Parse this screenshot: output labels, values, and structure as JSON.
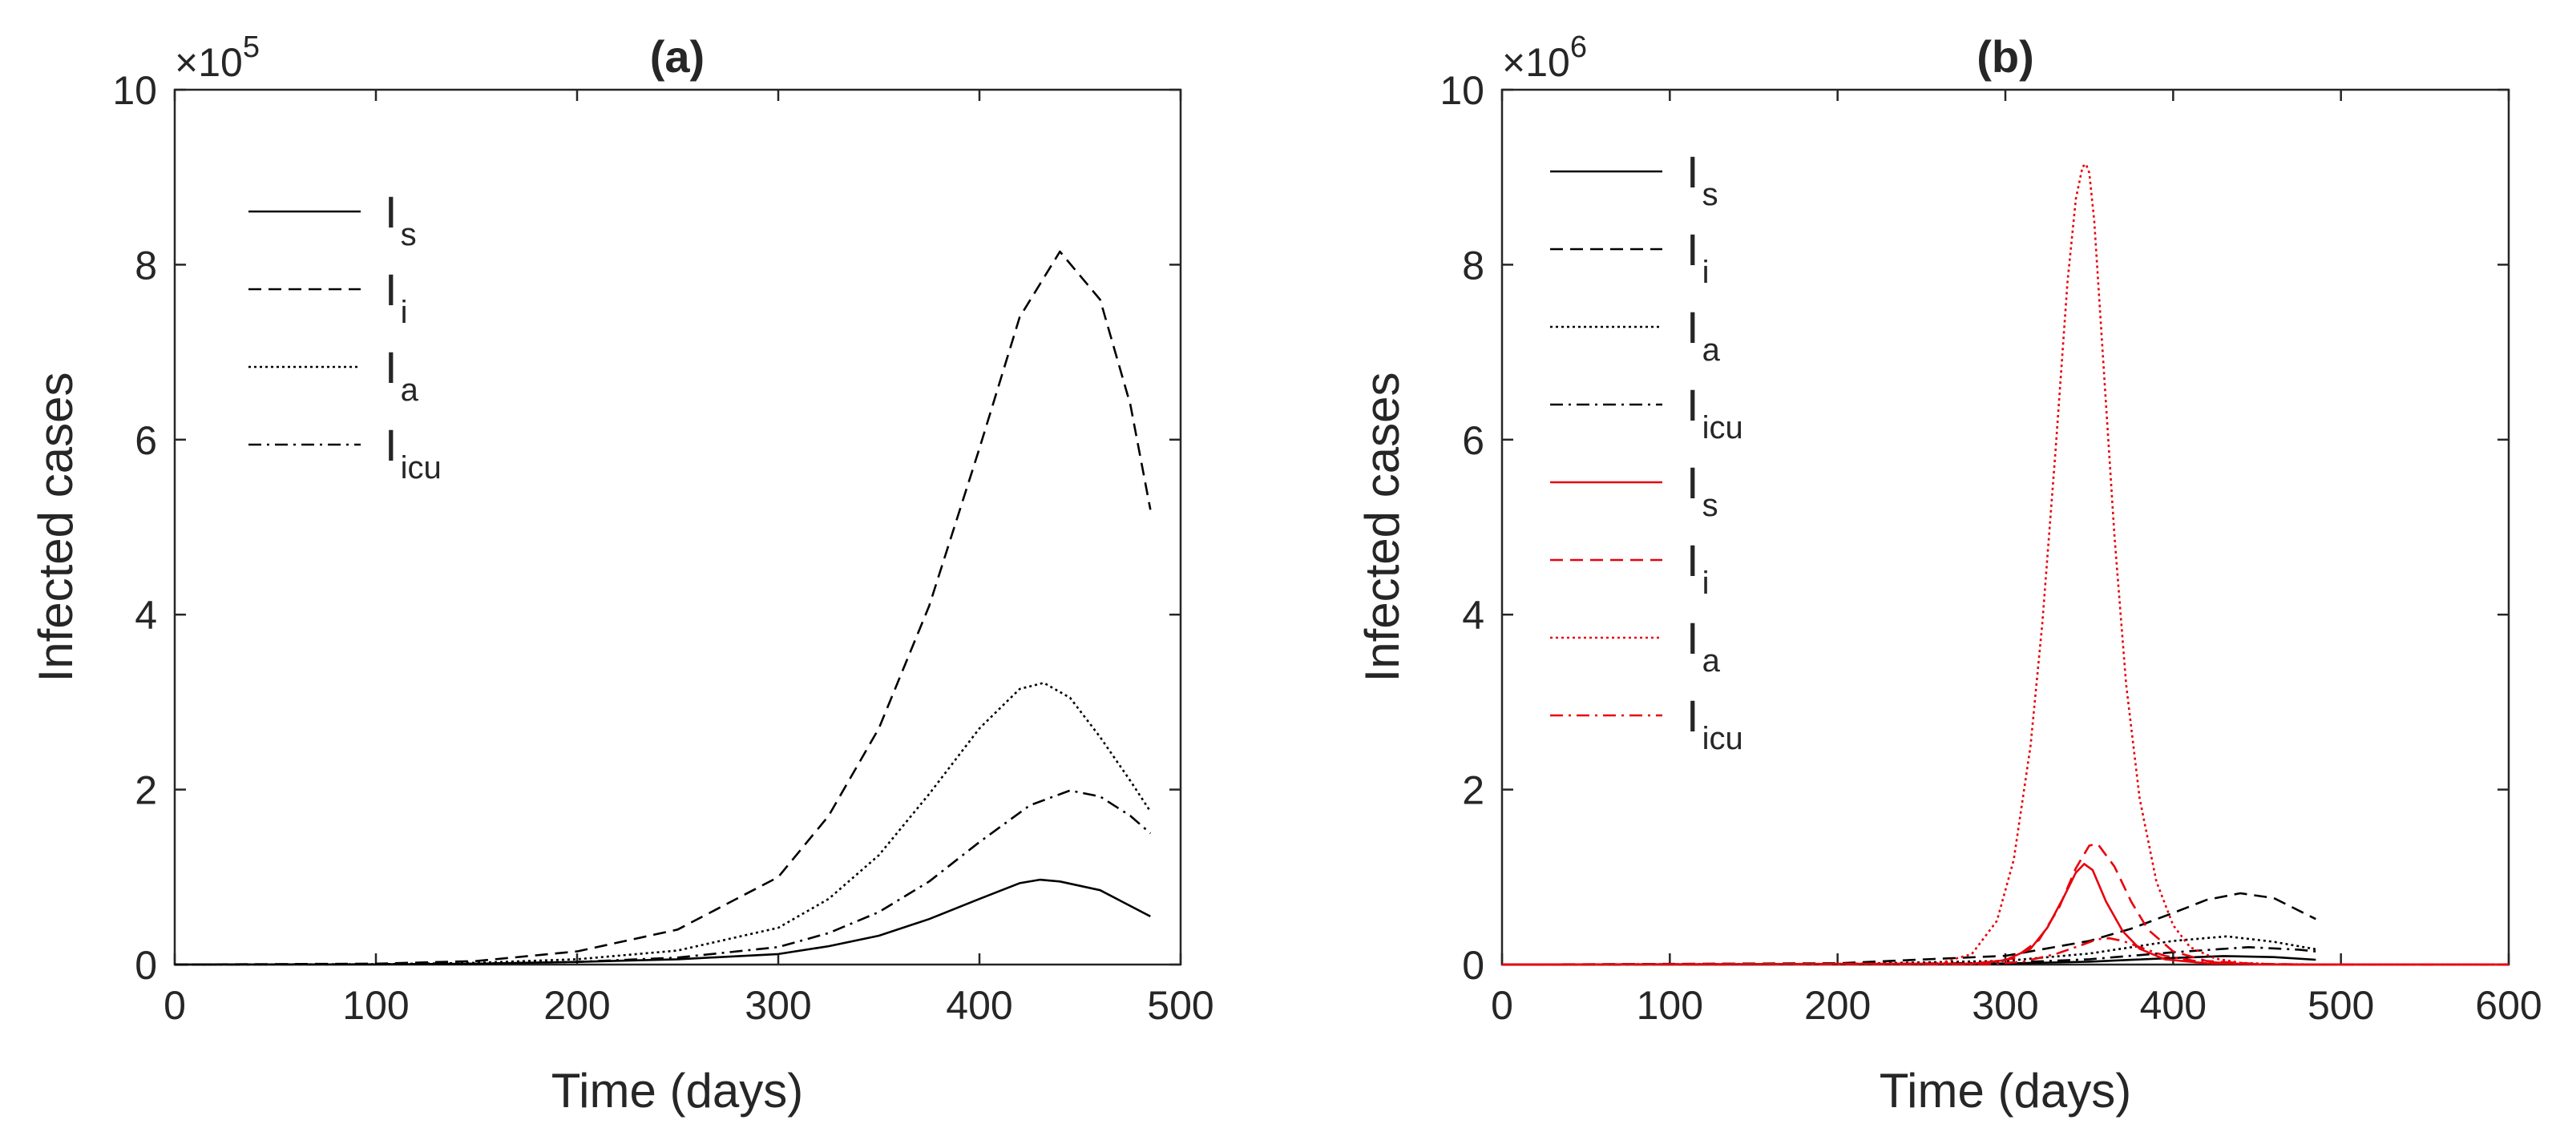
{
  "chart_data": [
    {
      "type": "line",
      "title": "(a)",
      "xlabel": "Time (days)",
      "ylabel": "Infected cases",
      "xlim": [
        0,
        500
      ],
      "ylim": [
        0,
        10
      ],
      "y_multiplier_label": "×10",
      "y_multiplier_exponent": "5",
      "xticks": [
        "0",
        "100",
        "200",
        "300",
        "400",
        "500"
      ],
      "yticks": [
        "0",
        "2",
        "4",
        "6",
        "8",
        "10"
      ],
      "legend_position": "top-left",
      "series": [
        {
          "name": "I",
          "subscript": "s",
          "color": "#000000",
          "style": "solid",
          "x": [
            0,
            100,
            150,
            200,
            250,
            300,
            325,
            350,
            375,
            400,
            420,
            430,
            440,
            460,
            485
          ],
          "y": [
            0,
            0.002,
            0.01,
            0.03,
            0.06,
            0.12,
            0.21,
            0.33,
            0.52,
            0.75,
            0.93,
            0.97,
            0.95,
            0.85,
            0.55
          ]
        },
        {
          "name": "I",
          "subscript": "i",
          "color": "#000000",
          "style": "dashed",
          "x": [
            0,
            100,
            150,
            200,
            250,
            300,
            325,
            350,
            375,
            400,
            420,
            440,
            460,
            475,
            485
          ],
          "y": [
            0,
            0.01,
            0.04,
            0.15,
            0.4,
            1.0,
            1.7,
            2.7,
            4.1,
            5.9,
            7.4,
            8.15,
            7.6,
            6.4,
            5.2
          ]
        },
        {
          "name": "I",
          "subscript": "a",
          "color": "#000000",
          "style": "dotted",
          "x": [
            0,
            100,
            150,
            200,
            250,
            300,
            325,
            350,
            375,
            400,
            420,
            432,
            445,
            460,
            475,
            485
          ],
          "y": [
            0,
            0.005,
            0.02,
            0.06,
            0.16,
            0.42,
            0.75,
            1.25,
            1.95,
            2.7,
            3.15,
            3.22,
            3.05,
            2.6,
            2.1,
            1.75
          ]
        },
        {
          "name": "I",
          "subscript": "icu",
          "color": "#000000",
          "style": "dashdot",
          "x": [
            0,
            100,
            150,
            200,
            250,
            300,
            325,
            350,
            375,
            400,
            425,
            445,
            460,
            475,
            485
          ],
          "y": [
            0,
            0.003,
            0.01,
            0.03,
            0.08,
            0.2,
            0.36,
            0.6,
            0.95,
            1.4,
            1.82,
            1.99,
            1.92,
            1.7,
            1.5
          ]
        }
      ]
    },
    {
      "type": "line",
      "title": "(b)",
      "xlabel": "Time (days)",
      "ylabel": "Infected cases",
      "xlim": [
        0,
        600
      ],
      "ylim": [
        0,
        10
      ],
      "y_multiplier_label": "×10",
      "y_multiplier_exponent": "6",
      "xticks": [
        "0",
        "100",
        "200",
        "300",
        "400",
        "500",
        "600"
      ],
      "yticks": [
        "0",
        "2",
        "4",
        "6",
        "8",
        "10"
      ],
      "legend_position": "top-left",
      "series": [
        {
          "name": "I",
          "subscript": "s",
          "color": "#000000",
          "style": "solid",
          "x": [
            0,
            200,
            300,
            350,
            400,
            430,
            460,
            485
          ],
          "y": [
            0,
            0.003,
            0.012,
            0.033,
            0.075,
            0.097,
            0.085,
            0.055
          ]
        },
        {
          "name": "I",
          "subscript": "i",
          "color": "#000000",
          "style": "dashed",
          "x": [
            0,
            200,
            300,
            350,
            375,
            400,
            420,
            440,
            460,
            485
          ],
          "y": [
            0,
            0.015,
            0.1,
            0.27,
            0.41,
            0.59,
            0.74,
            0.815,
            0.76,
            0.52
          ]
        },
        {
          "name": "I",
          "subscript": "a",
          "color": "#000000",
          "style": "dotted",
          "x": [
            0,
            200,
            300,
            350,
            400,
            432,
            460,
            485
          ],
          "y": [
            0,
            0.006,
            0.042,
            0.125,
            0.27,
            0.322,
            0.26,
            0.175
          ]
        },
        {
          "name": "I",
          "subscript": "icu",
          "color": "#000000",
          "style": "dashdot",
          "x": [
            0,
            200,
            300,
            350,
            400,
            445,
            475,
            485
          ],
          "y": [
            0,
            0.003,
            0.02,
            0.06,
            0.14,
            0.199,
            0.17,
            0.15
          ]
        },
        {
          "name": "I",
          "subscript": "s",
          "color": "#e8000b",
          "style": "solid",
          "x": [
            0,
            280,
            300,
            315,
            325,
            335,
            342,
            347,
            352,
            360,
            370,
            380,
            395,
            420,
            450,
            480,
            600
          ],
          "y": [
            0,
            0.01,
            0.05,
            0.18,
            0.42,
            0.78,
            1.05,
            1.15,
            1.08,
            0.72,
            0.38,
            0.18,
            0.06,
            0.015,
            0.003,
            0.001,
            0
          ]
        },
        {
          "name": "I",
          "subscript": "i",
          "color": "#e8000b",
          "style": "dashed",
          "x": [
            0,
            285,
            305,
            320,
            332,
            342,
            350,
            355,
            365,
            375,
            385,
            400,
            420,
            450,
            480,
            600
          ],
          "y": [
            0,
            0.01,
            0.07,
            0.28,
            0.65,
            1.1,
            1.36,
            1.38,
            1.12,
            0.72,
            0.4,
            0.15,
            0.04,
            0.008,
            0.001,
            0
          ]
        },
        {
          "name": "I",
          "subscript": "a",
          "color": "#e8000b",
          "style": "dotted",
          "x": [
            0,
            260,
            280,
            295,
            305,
            315,
            322,
            330,
            337,
            342,
            346,
            348,
            350,
            353,
            358,
            365,
            372,
            380,
            390,
            400,
            410,
            425,
            440,
            460,
            490,
            600
          ],
          "y": [
            0,
            0.01,
            0.12,
            0.5,
            1.2,
            2.5,
            3.9,
            5.9,
            7.8,
            8.75,
            9.12,
            9.15,
            9.05,
            8.5,
            7.0,
            4.9,
            3.2,
            1.9,
            0.95,
            0.45,
            0.2,
            0.07,
            0.02,
            0.005,
            0.001,
            0
          ]
        },
        {
          "name": "I",
          "subscript": "icu",
          "color": "#e8000b",
          "style": "dashdot",
          "x": [
            0,
            290,
            310,
            330,
            345,
            355,
            362,
            370,
            380,
            395,
            415,
            440,
            470,
            600
          ],
          "y": [
            0,
            0.005,
            0.03,
            0.12,
            0.22,
            0.29,
            0.3,
            0.27,
            0.2,
            0.1,
            0.035,
            0.008,
            0.001,
            0
          ]
        }
      ]
    }
  ]
}
